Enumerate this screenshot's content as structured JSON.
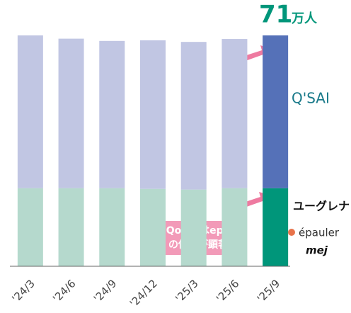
{
  "chart_data": {
    "type": "stacked-bar",
    "categories": [
      "'24/3",
      "'24/6",
      "'24/9",
      "'24/12",
      "'25/3",
      "'25/6",
      "'25/9"
    ],
    "series": [
      {
        "colors": [
          "#b5d9cd",
          "#b5d9cd",
          "#b5d9cd",
          "#b5d9cd",
          "#b5d9cd",
          "#b5d9cd",
          "#00967a"
        ],
        "values": [
          24,
          24,
          24,
          23.8,
          23.6,
          24,
          24
        ]
      },
      {
        "colors": [
          "#c1c6e3",
          "#c1c6e3",
          "#c1c6e3",
          "#c1c6e3",
          "#c1c6e3",
          "#c1c6e3",
          "#5571b8"
        ],
        "values": [
          47,
          46,
          45.3,
          45.7,
          45.4,
          45.9,
          47
        ]
      }
    ],
    "total_label": {
      "value": 71,
      "unit": "万人"
    },
    "callout": [
      "QoQではepo",
      "の伸びが顕著"
    ],
    "brands": [
      "Q'SAI",
      "ユーグレナ",
      "épauler",
      "mej"
    ]
  }
}
